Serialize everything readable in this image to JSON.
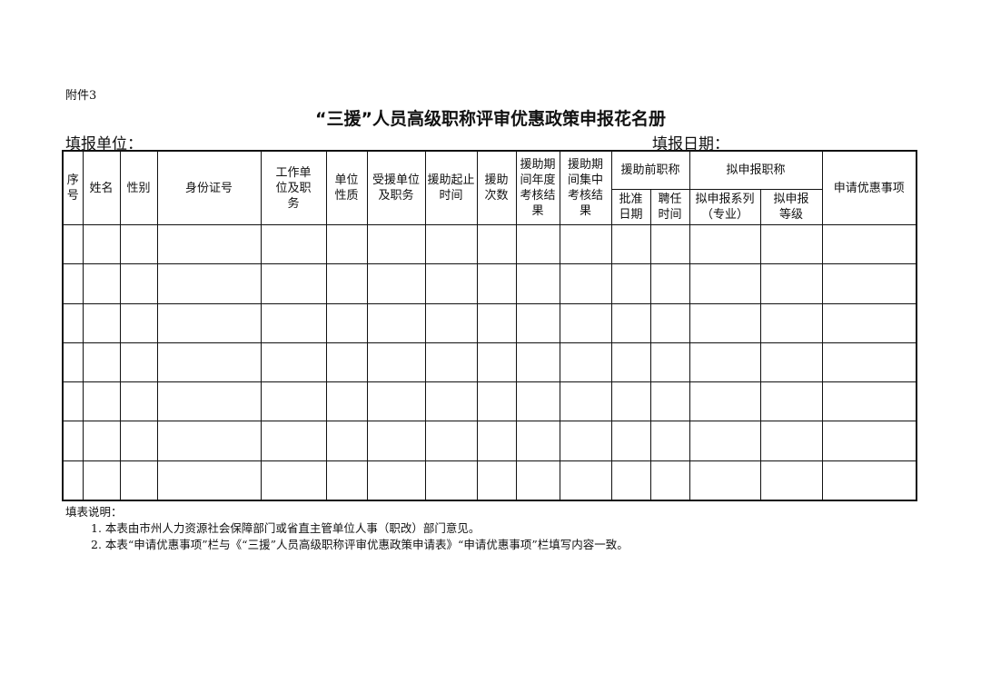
{
  "attachment": "附件3",
  "title": "“三援”人员高级职称评审优惠政策申报花名册",
  "fill_unit_label": "填报单位：",
  "fill_date_label": "填报日期：",
  "table": {
    "headers": {
      "seq": "序号",
      "name": "姓名",
      "gender": "性别",
      "id_number": "身份证号",
      "work_unit": "工作单位及职务",
      "unit_nature": "单位性质",
      "aided_unit": "受援单位及职务",
      "aid_period": "援助起止时间",
      "aid_count": "援助次数",
      "annual_review": "援助期间年度考核结果",
      "concentrated_review": "援助期间集中考核结果",
      "pre_title": "援助前职称",
      "approval_date": "批准日期",
      "hire_time": "聘任时间",
      "apply_title": "拟申报职称",
      "apply_series": "拟申报系列（专业）",
      "apply_level": "拟申报等级",
      "preferential_items": "申请优惠事项"
    },
    "empty_rows": 7
  },
  "notes": {
    "heading": "填表说明：",
    "items": [
      "1. 本表由市州人力资源社会保障部门或省直主管单位人事（职改）部门意见。",
      "2. 本表“申请优惠事项”栏与《“三援”人员高级职称评审优惠政策申请表》“申请优惠事项”栏填写内容一致。"
    ]
  }
}
